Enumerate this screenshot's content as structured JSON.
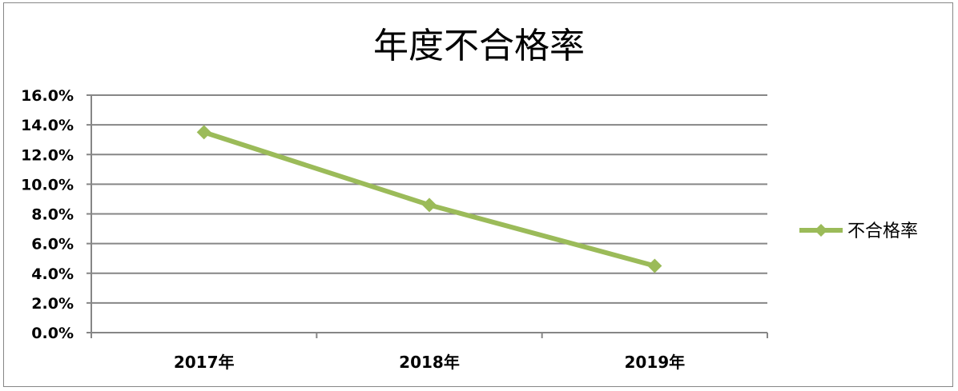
{
  "chart_data": {
    "type": "line",
    "title": "年度不合格率",
    "categories": [
      "2017年",
      "2018年",
      "2019年"
    ],
    "series": [
      {
        "name": "不合格率",
        "values": [
          13.5,
          8.6,
          4.5
        ],
        "color": "#9BBB59",
        "marker": "diamond"
      }
    ],
    "yticks": [
      "0.0%",
      "2.0%",
      "4.0%",
      "6.0%",
      "8.0%",
      "10.0%",
      "12.0%",
      "14.0%",
      "16.0%"
    ],
    "ylim": [
      0,
      16
    ],
    "y_unit": "%",
    "grid": true,
    "legend": "right",
    "gridline_color": "#868686"
  }
}
